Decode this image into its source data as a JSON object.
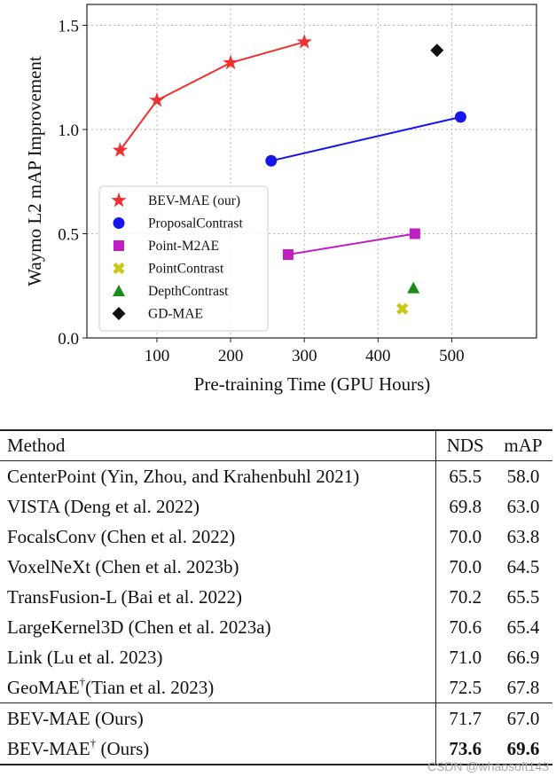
{
  "chart_data": {
    "type": "scatter",
    "title": "",
    "xlabel": "Pre-training Time (GPU Hours)",
    "ylabel": "Waymo L2 mAP Improvement",
    "xlim": [
      5,
      615
    ],
    "ylim": [
      0.0,
      1.6
    ],
    "x_ticks": [
      100,
      200,
      300,
      400,
      500
    ],
    "y_ticks": [
      0.0,
      0.5,
      1.0,
      1.5
    ],
    "x_tick_labels": [
      "100",
      "200",
      "300",
      "400",
      "500"
    ],
    "y_tick_labels": [
      "0.0",
      "0.5",
      "1.0",
      "1.5"
    ],
    "grid": true,
    "legend_position": "lower-left",
    "series": [
      {
        "name": "BEV-MAE (our)",
        "marker": "star",
        "color": "#f03030",
        "line": true,
        "x": [
          50,
          100,
          200,
          300
        ],
        "y": [
          0.9,
          1.14,
          1.32,
          1.42
        ]
      },
      {
        "name": "ProposalContrast",
        "marker": "circle",
        "color": "#1515ee",
        "line": true,
        "x": [
          255,
          512
        ],
        "y": [
          0.85,
          1.06
        ]
      },
      {
        "name": "Point-M2AE",
        "marker": "square",
        "color": "#c020c0",
        "line": true,
        "x": [
          278,
          450
        ],
        "y": [
          0.4,
          0.5
        ]
      },
      {
        "name": "PointContrast",
        "marker": "x",
        "color": "#c8c818",
        "line": false,
        "x": [
          433
        ],
        "y": [
          0.14
        ]
      },
      {
        "name": "DepthContrast",
        "marker": "triangle",
        "color": "#1a8a1a",
        "line": false,
        "x": [
          448
        ],
        "y": [
          0.24
        ]
      },
      {
        "name": "GD-MAE",
        "marker": "diamond",
        "color": "#111111",
        "line": false,
        "x": [
          480
        ],
        "y": [
          1.38
        ]
      }
    ]
  },
  "table": {
    "headers": {
      "method": "Method",
      "nds": "NDS",
      "map": "mAP"
    },
    "rows": [
      {
        "method": "CenterPoint (Yin, Zhou, and Krahenbuhl 2021)",
        "dagger": "",
        "tail": "",
        "nds": "65.5",
        "map": "58.0"
      },
      {
        "method": "VISTA (Deng et al. 2022)",
        "dagger": "",
        "tail": "",
        "nds": "69.8",
        "map": "63.0"
      },
      {
        "method": "FocalsConv (Chen et al. 2022)",
        "dagger": "",
        "tail": "",
        "nds": "70.0",
        "map": "63.8"
      },
      {
        "method": "VoxelNeXt (Chen et al. 2023b)",
        "dagger": "",
        "tail": "",
        "nds": "70.0",
        "map": "64.5"
      },
      {
        "method": "TransFusion-L (Bai et al. 2022)",
        "dagger": "",
        "tail": "",
        "nds": "70.2",
        "map": "65.5"
      },
      {
        "method": "LargeKernel3D (Chen et al. 2023a)",
        "dagger": "",
        "tail": "",
        "nds": "70.6",
        "map": "65.4"
      },
      {
        "method": "Link (Lu et al. 2023)",
        "dagger": "",
        "tail": "",
        "nds": "71.0",
        "map": "66.9"
      },
      {
        "method": "GeoMAE",
        "dagger": "†",
        "tail": "(Tian et al. 2023)",
        "nds": "72.5",
        "map": "67.8"
      }
    ],
    "ours_rows": [
      {
        "method": "BEV-MAE (Ours)",
        "dagger": "",
        "tail": "",
        "nds": "71.7",
        "map": "67.0"
      },
      {
        "method": "BEV-MAE",
        "dagger": "†",
        "tail": " (Ours)",
        "nds": "73.6",
        "map": "69.6"
      }
    ]
  },
  "watermark": "CSDN @whaosoft143"
}
